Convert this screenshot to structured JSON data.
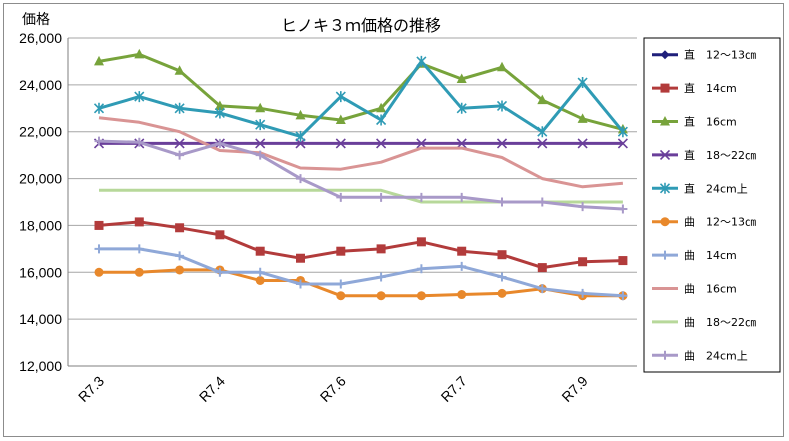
{
  "chart_data": {
    "type": "line",
    "title": "ヒノキ３ｍ価格の推移",
    "ylabel": "価格",
    "xlabel": "",
    "ylim": [
      12000,
      26000
    ],
    "yticks": [
      "12,000",
      "14,000",
      "16,000",
      "18,000",
      "20,000",
      "22,000",
      "24,000",
      "26,000"
    ],
    "ytick_values": [
      12000,
      14000,
      16000,
      18000,
      20000,
      22000,
      24000,
      26000
    ],
    "x_tick_labels": [
      {
        "index": 0,
        "label": "R7.3"
      },
      {
        "index": 3,
        "label": "R7.4"
      },
      {
        "index": 6,
        "label": "R7.6"
      },
      {
        "index": 9,
        "label": "R7.7"
      },
      {
        "index": 12,
        "label": "R7.9"
      }
    ],
    "n_points": 14,
    "grid": "horizontal",
    "legend_position": "right",
    "series": [
      {
        "name": "直　12～13㎝",
        "color": "#1f1f7a",
        "marker": "diamond",
        "values": [
          null,
          null,
          null,
          null,
          null,
          null,
          null,
          null,
          null,
          null,
          null,
          null,
          null,
          null
        ]
      },
      {
        "name": "直　14cm",
        "color": "#b23b3b",
        "marker": "square",
        "values": [
          18000,
          18150,
          17900,
          17600,
          16900,
          16600,
          16900,
          17000,
          17300,
          16900,
          16750,
          16200,
          16450,
          16500
        ]
      },
      {
        "name": "直　16cm",
        "color": "#77a33b",
        "marker": "triangle",
        "values": [
          25000,
          25300,
          24600,
          23100,
          23000,
          22700,
          22500,
          23000,
          24900,
          24250,
          24750,
          23350,
          22550,
          22100
        ]
      },
      {
        "name": "直　18～22㎝",
        "color": "#6a3f9a",
        "marker": "x",
        "values": [
          21500,
          21500,
          21500,
          21500,
          21500,
          21500,
          21500,
          21500,
          21500,
          21500,
          21500,
          21500,
          21500,
          21500
        ]
      },
      {
        "name": "直　24cm上",
        "color": "#2f9bb5",
        "marker": "asterisk",
        "values": [
          23000,
          23500,
          23000,
          22800,
          22300,
          21800,
          23500,
          22500,
          25000,
          23000,
          23100,
          22000,
          24100,
          22000
        ]
      },
      {
        "name": "曲　12～13㎝",
        "color": "#e8882b",
        "marker": "circle",
        "values": [
          16000,
          16000,
          16100,
          16100,
          15650,
          15650,
          15000,
          15000,
          15000,
          15050,
          15100,
          15300,
          15000,
          15000
        ]
      },
      {
        "name": "曲　14cm",
        "color": "#8fa8d8",
        "marker": "plus",
        "values": [
          17000,
          17000,
          16700,
          16000,
          16000,
          15500,
          15500,
          15800,
          16150,
          16250,
          15800,
          15300,
          15100,
          15000
        ]
      },
      {
        "name": "曲　16cm",
        "color": "#d99494",
        "marker": "none",
        "values": [
          22600,
          22400,
          22000,
          21200,
          21100,
          20450,
          20400,
          20700,
          21300,
          21300,
          20900,
          20000,
          19650,
          19800
        ]
      },
      {
        "name": "曲　18～22㎝",
        "color": "#b7d89a",
        "marker": "none",
        "values": [
          19500,
          19500,
          19500,
          19500,
          19500,
          19500,
          19500,
          19500,
          19000,
          19000,
          19000,
          19000,
          19000,
          19000
        ]
      },
      {
        "name": "曲　24cm上",
        "color": "#a899c8",
        "marker": "plus",
        "values": [
          21600,
          21550,
          21000,
          21500,
          21000,
          20000,
          19200,
          19200,
          19200,
          19200,
          19000,
          19000,
          18800,
          18700
        ]
      }
    ]
  }
}
